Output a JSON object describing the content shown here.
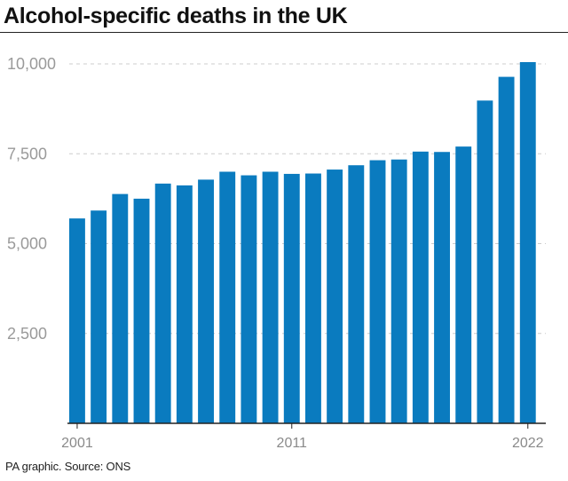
{
  "header": {
    "title": "Alcohol-specific deaths in the UK"
  },
  "footer": {
    "source": "PA graphic. Source: ONS"
  },
  "colors": {
    "bar": "#0a7bbf",
    "grid": "#cccccc",
    "axis": "#222222",
    "tick_text": "#9a9a9a"
  },
  "chart_data": {
    "type": "bar",
    "title": "Alcohol-specific deaths in the UK",
    "xlabel": "",
    "ylabel": "",
    "categories": [
      "2001",
      "2002",
      "2003",
      "2004",
      "2005",
      "2006",
      "2007",
      "2008",
      "2009",
      "2010",
      "2011",
      "2012",
      "2013",
      "2014",
      "2015",
      "2016",
      "2017",
      "2018",
      "2019",
      "2020",
      "2021",
      "2022"
    ],
    "x_tick_labels": [
      "2001",
      "2011",
      "2022"
    ],
    "values": [
      5700,
      5920,
      6380,
      6250,
      6670,
      6620,
      6780,
      7000,
      6900,
      7000,
      6940,
      6950,
      7060,
      7180,
      7320,
      7340,
      7560,
      7550,
      7700,
      8980,
      9640,
      10050
    ],
    "ylim": [
      0,
      10000
    ],
    "y_tick_labels": [
      "10,000",
      "7,500",
      "5,000",
      "2,500"
    ],
    "y_ticks": [
      10000,
      7500,
      5000,
      2500
    ],
    "grid": true,
    "grid_style": "dashed-horizontal",
    "legend": "none"
  }
}
